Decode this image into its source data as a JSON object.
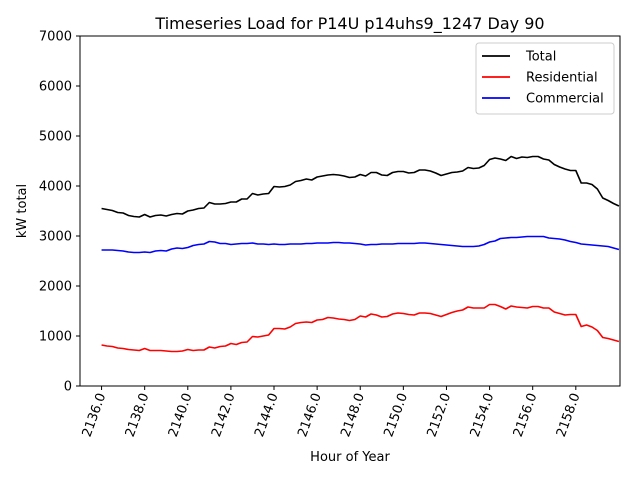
{
  "chart_data": {
    "type": "line",
    "title": "Timeseries Load for P14U p14uhs9_1247  Day 90",
    "xlabel": "Hour of Year",
    "ylabel": "kW total",
    "xlim": [
      2135.0,
      2160.05
    ],
    "ylim": [
      0,
      7000
    ],
    "x_ticks": [
      2136.0,
      2138.0,
      2140.0,
      2142.0,
      2144.0,
      2146.0,
      2148.0,
      2150.0,
      2152.0,
      2154.0,
      2156.0,
      2158.0
    ],
    "x_tick_labels": [
      "2136.0",
      "2138.0",
      "2140.0",
      "2142.0",
      "2144.0",
      "2146.0",
      "2148.0",
      "2150.0",
      "2152.0",
      "2154.0",
      "2156.0",
      "2158.0"
    ],
    "y_ticks": [
      0,
      1000,
      2000,
      3000,
      4000,
      5000,
      6000,
      7000
    ],
    "y_tick_labels": [
      "0",
      "1000",
      "2000",
      "3000",
      "4000",
      "5000",
      "6000",
      "7000"
    ],
    "legend_position": "top-right",
    "x_start": 2136.0,
    "x_step": 0.25,
    "series": [
      {
        "name": "Total",
        "color": "#000000",
        "values": [
          3550,
          3530,
          3510,
          3470,
          3460,
          3410,
          3390,
          3380,
          3430,
          3380,
          3410,
          3420,
          3400,
          3430,
          3450,
          3440,
          3500,
          3520,
          3550,
          3560,
          3670,
          3640,
          3640,
          3650,
          3680,
          3680,
          3740,
          3740,
          3850,
          3820,
          3840,
          3850,
          3990,
          3980,
          3990,
          4020,
          4090,
          4110,
          4140,
          4120,
          4180,
          4200,
          4220,
          4230,
          4220,
          4200,
          4170,
          4180,
          4230,
          4200,
          4270,
          4270,
          4220,
          4210,
          4270,
          4290,
          4290,
          4260,
          4270,
          4320,
          4320,
          4300,
          4260,
          4210,
          4240,
          4270,
          4280,
          4300,
          4370,
          4350,
          4360,
          4410,
          4530,
          4560,
          4540,
          4510,
          4590,
          4550,
          4580,
          4570,
          4590,
          4590,
          4540,
          4520,
          4430,
          4380,
          4340,
          4310,
          4310,
          4060,
          4060,
          4030,
          3940,
          3760,
          3710,
          3650,
          3600
        ]
      },
      {
        "name": "Residential",
        "color": "#ff0000",
        "values": [
          820,
          800,
          790,
          760,
          750,
          730,
          720,
          710,
          750,
          710,
          710,
          710,
          700,
          690,
          690,
          700,
          730,
          710,
          720,
          720,
          780,
          760,
          790,
          800,
          850,
          830,
          870,
          880,
          990,
          980,
          1000,
          1020,
          1150,
          1150,
          1140,
          1180,
          1250,
          1270,
          1280,
          1270,
          1320,
          1330,
          1370,
          1360,
          1340,
          1330,
          1310,
          1330,
          1400,
          1380,
          1440,
          1420,
          1380,
          1390,
          1440,
          1460,
          1450,
          1430,
          1420,
          1460,
          1460,
          1450,
          1420,
          1390,
          1430,
          1470,
          1500,
          1520,
          1580,
          1560,
          1560,
          1560,
          1630,
          1630,
          1590,
          1540,
          1600,
          1580,
          1570,
          1560,
          1590,
          1590,
          1560,
          1560,
          1480,
          1450,
          1420,
          1430,
          1430,
          1190,
          1220,
          1180,
          1110,
          970,
          950,
          920,
          890
        ]
      },
      {
        "name": "Commercial",
        "color": "#0000ff",
        "values": [
          2720,
          2720,
          2720,
          2710,
          2700,
          2680,
          2670,
          2670,
          2680,
          2670,
          2700,
          2710,
          2700,
          2740,
          2760,
          2750,
          2770,
          2810,
          2830,
          2840,
          2890,
          2880,
          2850,
          2850,
          2830,
          2840,
          2850,
          2850,
          2860,
          2840,
          2840,
          2830,
          2840,
          2830,
          2830,
          2840,
          2840,
          2840,
          2850,
          2850,
          2860,
          2860,
          2860,
          2870,
          2870,
          2860,
          2860,
          2850,
          2840,
          2820,
          2830,
          2830,
          2840,
          2840,
          2840,
          2850,
          2850,
          2850,
          2850,
          2860,
          2860,
          2850,
          2840,
          2830,
          2820,
          2810,
          2800,
          2790,
          2790,
          2790,
          2800,
          2830,
          2880,
          2900,
          2950,
          2960,
          2970,
          2970,
          2980,
          2990,
          2990,
          2990,
          2990,
          2960,
          2950,
          2940,
          2920,
          2890,
          2870,
          2840,
          2830,
          2820,
          2810,
          2800,
          2790,
          2760,
          2730
        ]
      }
    ]
  }
}
